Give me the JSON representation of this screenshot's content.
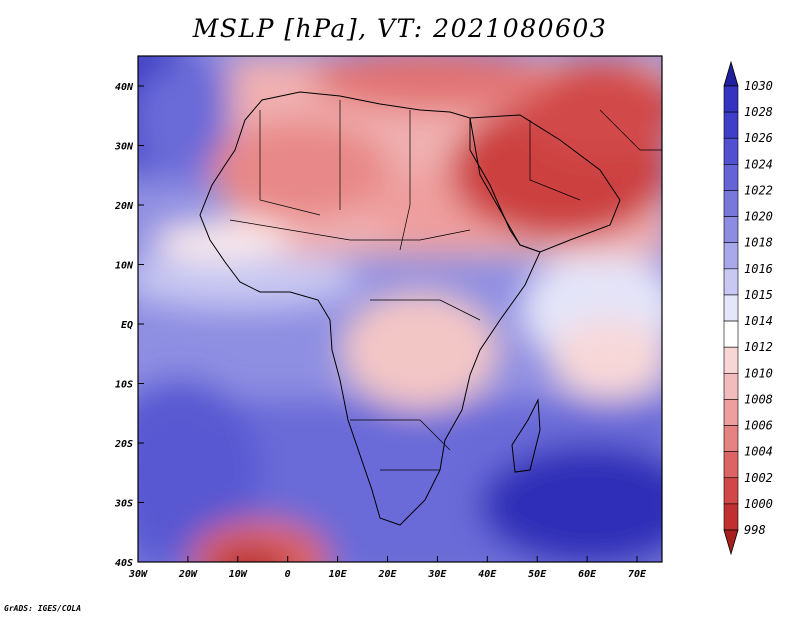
{
  "title": "MSLP [hPa], VT: 2021080603",
  "footer": "GrADS: IGES/COLA",
  "lat_ticks": [
    "40N",
    "30N",
    "20N",
    "10N",
    "EQ",
    "10S",
    "20S",
    "30S",
    "40S"
  ],
  "lon_ticks": [
    "30W",
    "20W",
    "10W",
    "0",
    "10E",
    "20E",
    "30E",
    "40E",
    "50E",
    "60E",
    "70E"
  ],
  "colorbar": {
    "labels": [
      "1030",
      "1028",
      "1026",
      "1024",
      "1022",
      "1020",
      "1018",
      "1016",
      "1015",
      "1014",
      "1012",
      "1010",
      "1008",
      "1006",
      "1004",
      "1002",
      "1000",
      "998"
    ],
    "colors": [
      "#2a2ab6",
      "#3434c0",
      "#3e3ec8",
      "#5050d0",
      "#6464d6",
      "#7878dc",
      "#8c8ce2",
      "#a8a8ea",
      "#c8c8f2",
      "#e6e6fa",
      "#ffffff",
      "#f8d6d6",
      "#f3bcbc",
      "#ed9e9e",
      "#e68282",
      "#dd6464",
      "#d24848",
      "#c03030",
      "#a81e1e"
    ]
  }
}
